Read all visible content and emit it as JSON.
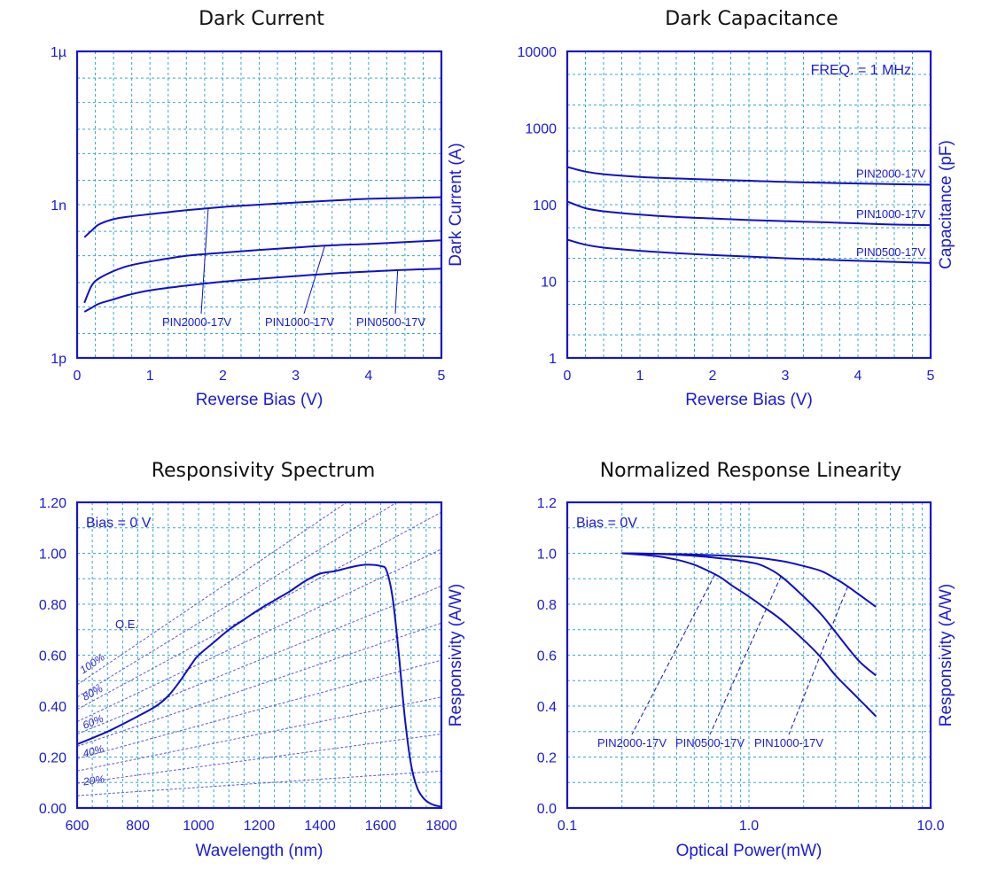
{
  "colors": {
    "axis": "#1515d0",
    "curve": "#1010c8",
    "grid": "#35a8d8",
    "text": "#1a1adc"
  },
  "chart_data": [
    {
      "type": "line",
      "title": "Dark Current",
      "xlabel": "Reverse Bias (V)",
      "ylabel": "Dark Current (A)",
      "xlim": [
        0,
        5
      ],
      "ylim": [
        1e-12,
        1e-06
      ],
      "y_scale": "log",
      "x_ticks": [
        0,
        1,
        2,
        3,
        4,
        5
      ],
      "x_tick_labels": [
        "0",
        "1",
        "2",
        "3",
        "4",
        "5"
      ],
      "y_ticks": [
        1e-12,
        1e-09,
        1e-06
      ],
      "y_tick_labels": [
        "1p",
        "1n",
        "1µ"
      ],
      "grid": true,
      "series": [
        {
          "name": "PIN2000-17V",
          "x": [
            0.1,
            0.2,
            0.3,
            0.5,
            0.7,
            1,
            1.5,
            2,
            2.5,
            3,
            3.5,
            4,
            4.5,
            5
          ],
          "y": [
            2.3e-10,
            3.1e-10,
            4.1e-10,
            5.2e-10,
            5.8e-10,
            6.5e-10,
            7.8e-10,
            9e-10,
            1e-09,
            1.1e-09,
            1.2e-09,
            1.3e-09,
            1.35e-09,
            1.4e-09
          ]
        },
        {
          "name": "PIN1000-17V",
          "x": [
            0.1,
            0.2,
            0.3,
            0.5,
            0.7,
            1,
            1.5,
            2,
            2.5,
            3,
            3.5,
            4,
            4.5,
            5
          ],
          "y": [
            1.2e-11,
            2.6e-11,
            3.6e-11,
            5e-11,
            6.3e-11,
            7.7e-11,
            1e-10,
            1.15e-10,
            1.3e-10,
            1.45e-10,
            1.6e-10,
            1.7e-10,
            1.85e-10,
            2e-10
          ]
        },
        {
          "name": "PIN0500-17V",
          "x": [
            0.1,
            0.2,
            0.3,
            0.5,
            0.7,
            1,
            1.5,
            2,
            2.5,
            3,
            3.5,
            4,
            4.5,
            5
          ],
          "y": [
            8e-12,
            9.6e-12,
            1.15e-11,
            1.4e-11,
            1.7e-11,
            2.1e-11,
            2.6e-11,
            3.1e-11,
            3.55e-11,
            4e-11,
            4.5e-11,
            4.9e-11,
            5.3e-11,
            5.6e-11
          ]
        }
      ],
      "labels": [
        {
          "text": "PIN2000-17V",
          "series": "PIN2000-17V",
          "at_x": 1.8
        },
        {
          "text": "PIN1000-17V",
          "series": "PIN1000-17V",
          "at_x": 3.4
        },
        {
          "text": "PIN0500-17V",
          "series": "PIN0500-17V",
          "at_x": 4.4
        }
      ]
    },
    {
      "type": "line",
      "title": "Dark Capacitance",
      "xlabel": "Reverse Bias (V)",
      "ylabel": "Capacitance (pF)",
      "xlim": [
        0,
        5
      ],
      "ylim": [
        1,
        10000
      ],
      "y_scale": "log",
      "x_ticks": [
        0,
        1,
        2,
        3,
        4,
        5
      ],
      "x_tick_labels": [
        "0",
        "1",
        "2",
        "3",
        "4",
        "5"
      ],
      "y_ticks": [
        1,
        10,
        100,
        1000,
        10000
      ],
      "y_tick_labels": [
        "1",
        "10",
        "100",
        "1000",
        "10000"
      ],
      "grid": true,
      "annotation": "FREQ. = 1 MHz",
      "series": [
        {
          "name": "PIN2000-17V",
          "x": [
            0,
            0.25,
            0.5,
            1,
            1.5,
            2,
            2.5,
            3,
            3.5,
            4,
            4.5,
            5
          ],
          "y": [
            310,
            270,
            250,
            230,
            220,
            212,
            205,
            198,
            193,
            189,
            185,
            182
          ]
        },
        {
          "name": "PIN1000-17V",
          "x": [
            0,
            0.25,
            0.5,
            1,
            1.5,
            2,
            2.5,
            3,
            3.5,
            4,
            4.5,
            5
          ],
          "y": [
            110,
            90,
            82,
            74,
            69,
            66,
            63,
            61,
            59,
            57,
            55,
            54
          ]
        },
        {
          "name": "PIN0500-17V",
          "x": [
            0,
            0.25,
            0.5,
            1,
            1.5,
            2,
            2.5,
            3,
            3.5,
            4,
            4.5,
            5
          ],
          "y": [
            35,
            30,
            27.5,
            25,
            23.3,
            22,
            21,
            20,
            19.2,
            18.5,
            17.9,
            17.3
          ]
        }
      ],
      "labels": [
        {
          "text": "PIN2000-17V",
          "series": "PIN2000-17V"
        },
        {
          "text": "PIN1000-17V",
          "series": "PIN1000-17V"
        },
        {
          "text": "PIN0500-17V",
          "series": "PIN0500-17V"
        }
      ]
    },
    {
      "type": "line",
      "title": "Responsivity Spectrum",
      "xlabel": "Wavelength (nm)",
      "ylabel": "Responsivity (A/W)",
      "xlim": [
        600,
        1800
      ],
      "ylim": [
        0,
        1.2
      ],
      "x_ticks": [
        600,
        800,
        1000,
        1200,
        1400,
        1600,
        1800
      ],
      "x_tick_labels": [
        "600",
        "800",
        "1000",
        "1200",
        "1400",
        "1600",
        "1800"
      ],
      "y_ticks": [
        0,
        0.2,
        0.4,
        0.6,
        0.8,
        1.0,
        1.2
      ],
      "y_tick_labels": [
        "0.00",
        "0.20",
        "0.40",
        "0.60",
        "0.80",
        "1.00",
        "1.20"
      ],
      "grid": true,
      "annotation": "Bias = 0 V",
      "qe_label": "Q.E.",
      "qe_lines": [
        {
          "label": "100%",
          "qe": 1.0
        },
        {
          "label": "90%",
          "qe": 0.9,
          "show_label": false
        },
        {
          "label": "80%",
          "qe": 0.8
        },
        {
          "label": "70%",
          "qe": 0.7,
          "show_label": false
        },
        {
          "label": "60%",
          "qe": 0.6
        },
        {
          "label": "50%",
          "qe": 0.5,
          "show_label": false
        },
        {
          "label": "40%",
          "qe": 0.4
        },
        {
          "label": "30%",
          "qe": 0.3,
          "show_label": false
        },
        {
          "label": "20%",
          "qe": 0.2
        },
        {
          "label": "10%",
          "qe": 0.1,
          "show_label": false
        }
      ],
      "series": [
        {
          "name": "",
          "x": [
            600,
            700,
            800,
            860,
            900,
            940,
            980,
            1000,
            1050,
            1100,
            1150,
            1200,
            1250,
            1300,
            1350,
            1400,
            1450,
            1500,
            1550,
            1600,
            1620,
            1640,
            1660,
            1680,
            1700,
            1720,
            1740,
            1760,
            1780,
            1800
          ],
          "y": [
            0.25,
            0.3,
            0.36,
            0.4,
            0.44,
            0.5,
            0.57,
            0.6,
            0.65,
            0.7,
            0.74,
            0.78,
            0.815,
            0.85,
            0.89,
            0.92,
            0.93,
            0.945,
            0.955,
            0.95,
            0.93,
            0.82,
            0.6,
            0.35,
            0.17,
            0.08,
            0.04,
            0.02,
            0.01,
            0.005
          ]
        }
      ]
    },
    {
      "type": "line",
      "title": "Normalized Response Linearity",
      "xlabel": "Optical Power(mW)",
      "ylabel": "Responsivity (A/W)",
      "xlim": [
        0.1,
        10
      ],
      "ylim": [
        0,
        1.2
      ],
      "x_scale": "log",
      "x_ticks": [
        0.1,
        1,
        10
      ],
      "x_tick_labels": [
        "0.1",
        "1.0",
        "10.0"
      ],
      "y_ticks": [
        0,
        0.2,
        0.4,
        0.6,
        0.8,
        1.0,
        1.2
      ],
      "y_tick_labels": [
        "0.0",
        "0.2",
        "0.4",
        "0.6",
        "0.8",
        "1.0",
        "1.2"
      ],
      "grid": true,
      "annotation": "Bias = 0V",
      "series": [
        {
          "name": "PIN2000-17V",
          "x": [
            0.2,
            0.3,
            0.4,
            0.5,
            0.6,
            0.7,
            0.8,
            1.0,
            1.2,
            1.5,
            2,
            2.5,
            3,
            4,
            5
          ],
          "y": [
            1.0,
            0.99,
            0.975,
            0.955,
            0.93,
            0.905,
            0.875,
            0.83,
            0.79,
            0.74,
            0.66,
            0.59,
            0.52,
            0.43,
            0.36
          ]
        },
        {
          "name": "PIN0500-17V",
          "x": [
            0.2,
            0.3,
            0.5,
            0.7,
            1.0,
            1.2,
            1.5,
            2,
            2.5,
            3,
            4,
            5
          ],
          "y": [
            1.0,
            0.998,
            0.99,
            0.98,
            0.965,
            0.95,
            0.91,
            0.83,
            0.76,
            0.69,
            0.58,
            0.52
          ]
        },
        {
          "name": "PIN1000-17V",
          "x": [
            0.2,
            0.5,
            1.0,
            1.5,
            2,
            2.5,
            3,
            3.5,
            4,
            5
          ],
          "y": [
            1.0,
            0.995,
            0.985,
            0.97,
            0.95,
            0.93,
            0.9,
            0.87,
            0.84,
            0.79
          ]
        }
      ],
      "labels": [
        {
          "text": "PIN2000-17V",
          "series": "PIN2000-17V",
          "at_x": 0.65
        },
        {
          "text": "PIN0500-17V",
          "series": "PIN0500-17V",
          "at_x": 1.5
        },
        {
          "text": "PIN1000-17V",
          "series": "PIN1000-17V",
          "at_x": 3.5
        }
      ]
    }
  ]
}
